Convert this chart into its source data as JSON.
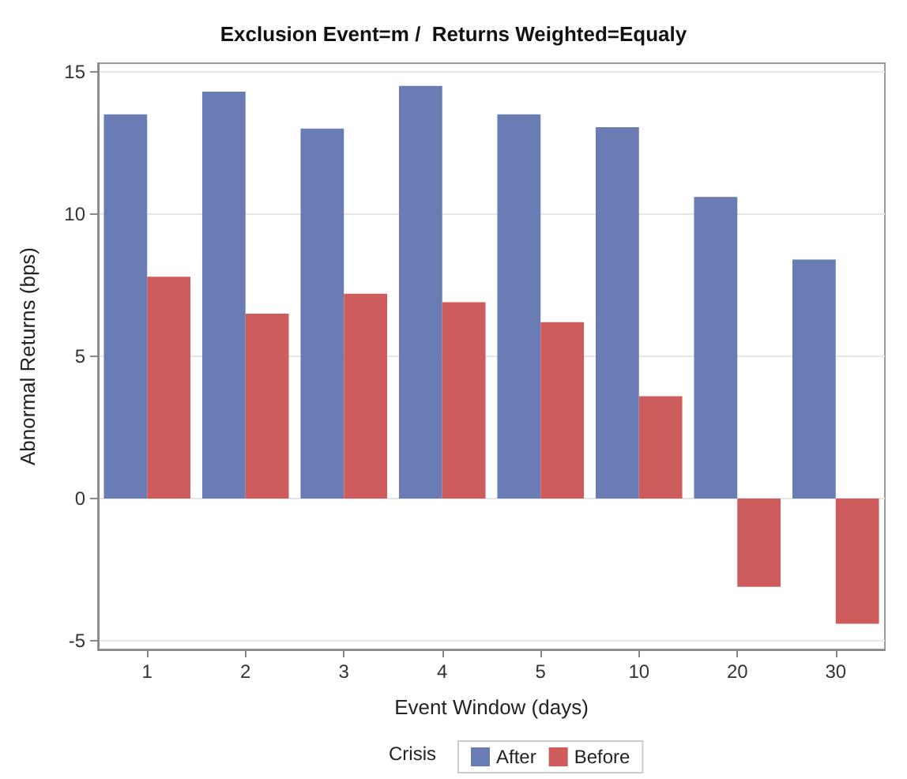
{
  "chart_data": {
    "type": "bar",
    "title": "Exclusion Event=m /  Returns Weighted=Equaly",
    "xlabel": "Event Window (days)",
    "ylabel": "Abnormal Returns (bps)",
    "legend_title": "Crisis",
    "categories": [
      "1",
      "2",
      "3",
      "4",
      "5",
      "10",
      "20",
      "30"
    ],
    "series": [
      {
        "name": "After",
        "color": "#6a7cb4",
        "values": [
          13.5,
          14.3,
          13.0,
          14.5,
          13.5,
          13.05,
          10.6,
          8.4
        ]
      },
      {
        "name": "Before",
        "color": "#cf5c5c",
        "values": [
          7.8,
          6.5,
          7.2,
          6.9,
          6.2,
          3.6,
          -3.1,
          -4.4
        ]
      }
    ],
    "ylim": [
      -5.3,
      15.3
    ],
    "yticks": [
      -5,
      0,
      5,
      10,
      15
    ],
    "grid": "y",
    "legend": "bottom"
  }
}
